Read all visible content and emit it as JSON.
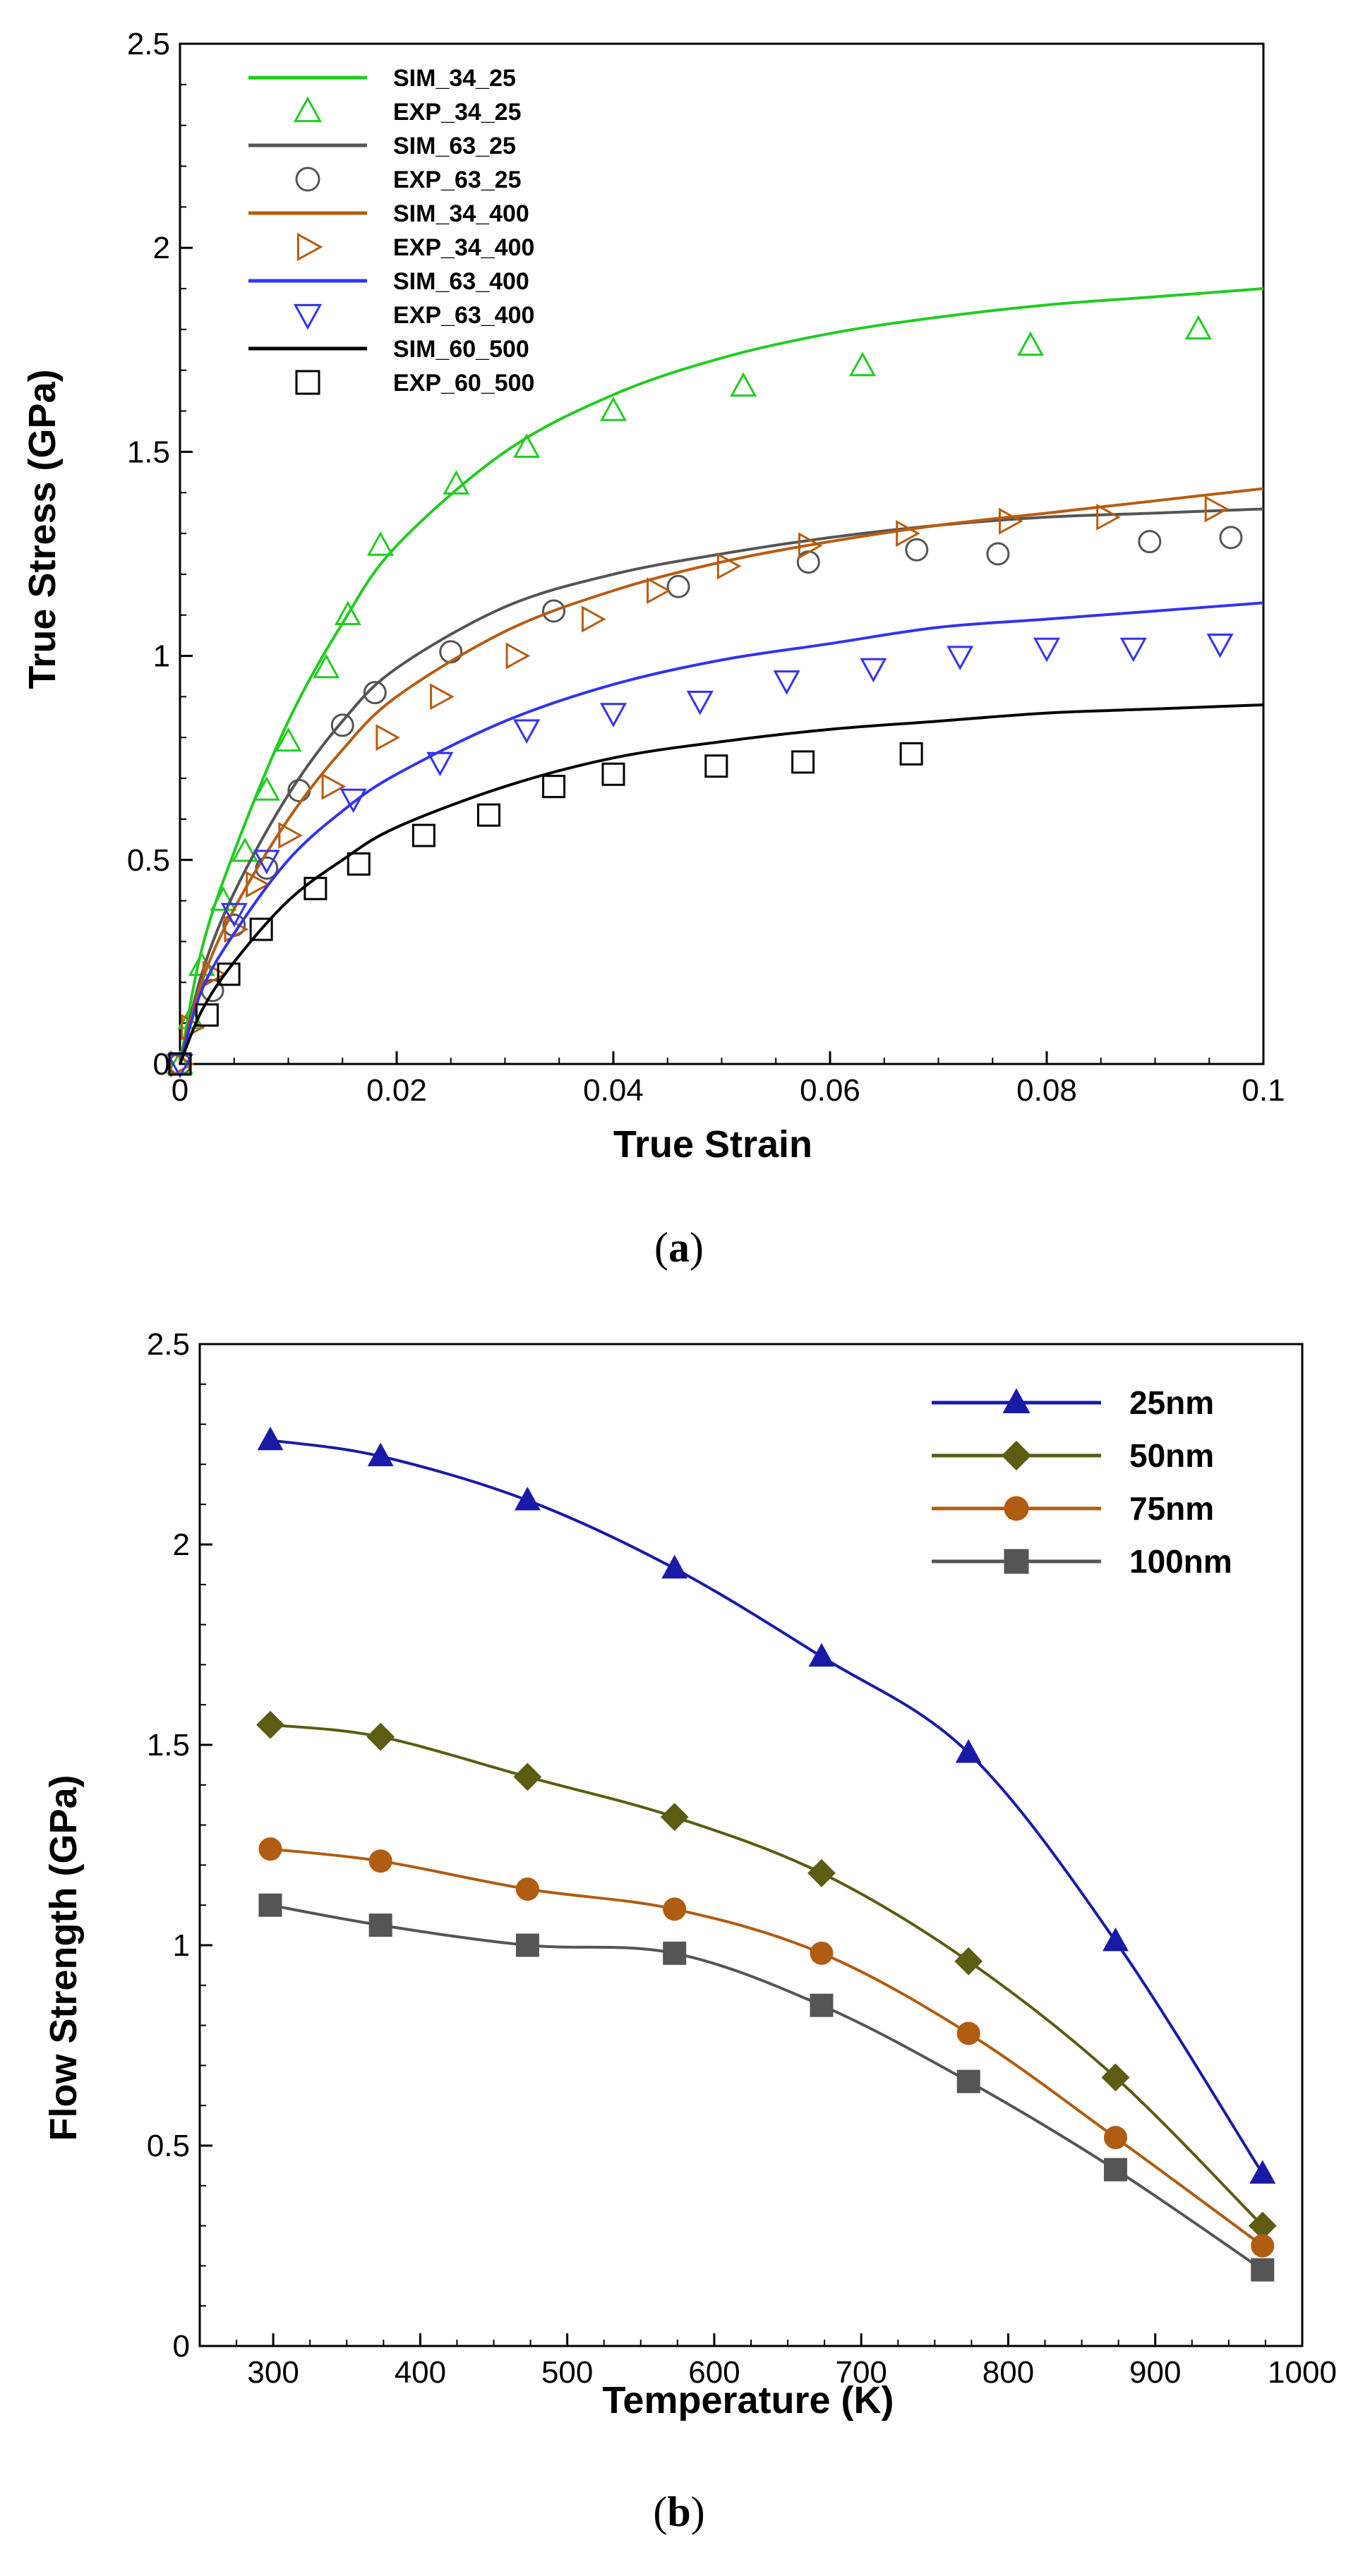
{
  "chart_data": [
    {
      "type": "line",
      "caption_open": "(",
      "caption_letter": "a",
      "caption_close": ")",
      "title": "",
      "xlabel": "True Strain",
      "ylabel": "True Stress (GPa)",
      "xlim": [
        0,
        0.1
      ],
      "ylim": [
        0,
        2.5
      ],
      "xticks": [
        0,
        0.02,
        0.04,
        0.06,
        0.08,
        0.1
      ],
      "xtick_labels": [
        "0",
        "0.02",
        "0.04",
        "0.06",
        "0.08",
        "0.1"
      ],
      "yticks": [
        0,
        0.5,
        1,
        1.5,
        2,
        2.5
      ],
      "ytick_labels": [
        "0",
        "0.5",
        "1",
        "1.5",
        "2",
        "2.5"
      ],
      "legend_position": "top-left",
      "series": [
        {
          "name": "SIM_34_25",
          "kind": "line",
          "color": "#22cc22",
          "x": [
            0,
            0.002,
            0.005,
            0.01,
            0.015,
            0.02,
            0.03,
            0.04,
            0.05,
            0.06,
            0.07,
            0.08,
            0.09,
            0.1
          ],
          "y": [
            0,
            0.28,
            0.52,
            0.84,
            1.08,
            1.27,
            1.5,
            1.64,
            1.73,
            1.79,
            1.83,
            1.86,
            1.88,
            1.9
          ]
        },
        {
          "name": "EXP_34_25",
          "kind": "marker",
          "marker": "triangle-up",
          "color": "#22cc22",
          "x": [
            0,
            0.001,
            0.002,
            0.004,
            0.006,
            0.008,
            0.01,
            0.0135,
            0.0155,
            0.0185,
            0.0255,
            0.032,
            0.04,
            0.052,
            0.063,
            0.0785,
            0.094
          ],
          "y": [
            0,
            0.11,
            0.24,
            0.4,
            0.52,
            0.67,
            0.79,
            0.97,
            1.1,
            1.27,
            1.42,
            1.51,
            1.6,
            1.66,
            1.71,
            1.76,
            1.8
          ]
        },
        {
          "name": "SIM_63_25",
          "kind": "line",
          "color": "#555555",
          "x": [
            0,
            0.002,
            0.005,
            0.01,
            0.015,
            0.02,
            0.03,
            0.04,
            0.05,
            0.06,
            0.07,
            0.08,
            0.09,
            0.1
          ],
          "y": [
            0,
            0.22,
            0.42,
            0.66,
            0.84,
            0.97,
            1.12,
            1.2,
            1.25,
            1.29,
            1.32,
            1.34,
            1.35,
            1.36
          ]
        },
        {
          "name": "EXP_63_25",
          "kind": "marker",
          "marker": "circle",
          "color": "#555555",
          "x": [
            0,
            0.003,
            0.005,
            0.008,
            0.011,
            0.015,
            0.018,
            0.025,
            0.0345,
            0.046,
            0.058,
            0.068,
            0.0755,
            0.0895,
            0.097
          ],
          "y": [
            0,
            0.18,
            0.34,
            0.48,
            0.67,
            0.83,
            0.91,
            1.01,
            1.11,
            1.17,
            1.23,
            1.26,
            1.25,
            1.28,
            1.29
          ]
        },
        {
          "name": "SIM_34_400",
          "kind": "line",
          "color": "#b85c12",
          "x": [
            0,
            0.002,
            0.005,
            0.01,
            0.015,
            0.02,
            0.03,
            0.04,
            0.05,
            0.06,
            0.07,
            0.08,
            0.09,
            0.1
          ],
          "y": [
            0,
            0.2,
            0.38,
            0.6,
            0.77,
            0.9,
            1.06,
            1.16,
            1.23,
            1.28,
            1.32,
            1.35,
            1.38,
            1.41
          ]
        },
        {
          "name": "EXP_34_400",
          "kind": "marker",
          "marker": "triangle-right",
          "color": "#b85c12",
          "x": [
            0,
            0.001,
            0.003,
            0.005,
            0.007,
            0.01,
            0.014,
            0.019,
            0.024,
            0.031,
            0.038,
            0.044,
            0.0505,
            0.058,
            0.067,
            0.0765,
            0.0855,
            0.0955
          ],
          "y": [
            0,
            0.09,
            0.22,
            0.33,
            0.44,
            0.56,
            0.68,
            0.8,
            0.9,
            1.0,
            1.09,
            1.16,
            1.22,
            1.27,
            1.3,
            1.33,
            1.34,
            1.36
          ]
        },
        {
          "name": "SIM_63_400",
          "kind": "line",
          "color": "#3333ee",
          "x": [
            0,
            0.002,
            0.005,
            0.01,
            0.015,
            0.02,
            0.03,
            0.04,
            0.05,
            0.06,
            0.07,
            0.08,
            0.09,
            0.1
          ],
          "y": [
            0,
            0.18,
            0.32,
            0.5,
            0.62,
            0.71,
            0.84,
            0.93,
            0.99,
            1.03,
            1.07,
            1.09,
            1.11,
            1.13
          ]
        },
        {
          "name": "EXP_63_400",
          "kind": "marker",
          "marker": "triangle-down",
          "color": "#3333ee",
          "x": [
            0,
            0.005,
            0.008,
            0.016,
            0.024,
            0.032,
            0.04,
            0.048,
            0.056,
            0.064,
            0.072,
            0.08,
            0.088,
            0.096
          ],
          "y": [
            0,
            0.37,
            0.5,
            0.65,
            0.74,
            0.82,
            0.86,
            0.89,
            0.94,
            0.97,
            1.0,
            1.02,
            1.02,
            1.03
          ]
        },
        {
          "name": "SIM_60_500",
          "kind": "line",
          "color": "#000000",
          "x": [
            0,
            0.002,
            0.005,
            0.01,
            0.015,
            0.02,
            0.03,
            0.04,
            0.05,
            0.06,
            0.07,
            0.08,
            0.09,
            0.1
          ],
          "y": [
            0,
            0.13,
            0.25,
            0.4,
            0.5,
            0.58,
            0.68,
            0.75,
            0.79,
            0.82,
            0.84,
            0.86,
            0.87,
            0.88
          ]
        },
        {
          "name": "EXP_60_500",
          "kind": "marker",
          "marker": "square",
          "color": "#000000",
          "x": [
            0,
            0.0025,
            0.0045,
            0.0075,
            0.0125,
            0.0165,
            0.0225,
            0.0285,
            0.0345,
            0.04,
            0.0495,
            0.0575,
            0.0675
          ],
          "y": [
            0,
            0.12,
            0.22,
            0.33,
            0.43,
            0.49,
            0.56,
            0.61,
            0.68,
            0.71,
            0.73,
            0.74,
            0.76
          ]
        }
      ]
    },
    {
      "type": "line",
      "caption_open": "(",
      "caption_letter": "b",
      "caption_close": ")",
      "title": "",
      "xlabel": "Temperature (K)",
      "ylabel": "Flow Strength (GPa)",
      "xlim": [
        250,
        1000
      ],
      "ylim": [
        0,
        2.5
      ],
      "xticks": [
        300,
        400,
        500,
        600,
        700,
        800,
        900,
        1000
      ],
      "xtick_labels": [
        "300",
        "400",
        "500",
        "600",
        "700",
        "800",
        "900",
        "1000"
      ],
      "yticks": [
        0,
        0.5,
        1,
        1.5,
        2,
        2.5
      ],
      "ytick_labels": [
        "0",
        "0.5",
        "1",
        "1.5",
        "2",
        "2.5"
      ],
      "legend_position": "top-right",
      "categories": [
        298,
        373,
        473,
        573,
        673,
        773,
        873,
        973
      ],
      "series": [
        {
          "name": "25nm",
          "marker": "triangle-up",
          "color": "#1a1aa8",
          "values": [
            2.26,
            2.22,
            2.11,
            1.94,
            1.72,
            1.48,
            1.01,
            0.43
          ]
        },
        {
          "name": "50nm",
          "marker": "diamond",
          "color": "#5c5c12",
          "values": [
            1.55,
            1.52,
            1.42,
            1.32,
            1.18,
            0.96,
            0.67,
            0.3
          ]
        },
        {
          "name": "75nm",
          "marker": "circle",
          "color": "#b05c12",
          "values": [
            1.24,
            1.21,
            1.14,
            1.09,
            0.98,
            0.78,
            0.52,
            0.25
          ]
        },
        {
          "name": "100nm",
          "marker": "square",
          "color": "#555555",
          "values": [
            1.1,
            1.05,
            1.0,
            0.98,
            0.85,
            0.66,
            0.44,
            0.19
          ]
        }
      ]
    }
  ]
}
